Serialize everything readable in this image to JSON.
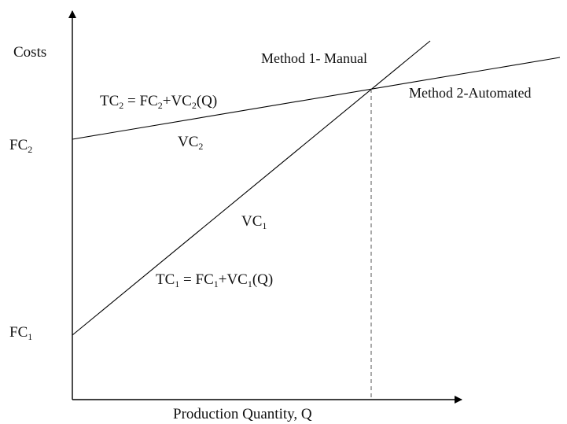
{
  "diagram": {
    "y_axis_label": "Costs",
    "x_axis_label": "Production Quantity, Q",
    "fc2": {
      "main": "FC",
      "sub": "2"
    },
    "fc1": {
      "main": "FC",
      "sub": "1"
    },
    "method1_label": "Method 1- Manual",
    "method2_label": "Method 2-Automated",
    "vc2": {
      "main": "VC",
      "sub": "2"
    },
    "vc1": {
      "main": "VC",
      "sub": "1"
    },
    "tc2": {
      "a": "TC",
      "a_sub": "2",
      "b": " = FC",
      "b_sub": "2",
      "c": "+VC",
      "c_sub": "2",
      "d": "(Q)"
    },
    "tc1": {
      "a": "TC",
      "a_sub": "1",
      "b": " = FC",
      "b_sub": "1",
      "c": "+VC",
      "c_sub": "1",
      "d": "(Q)"
    }
  }
}
